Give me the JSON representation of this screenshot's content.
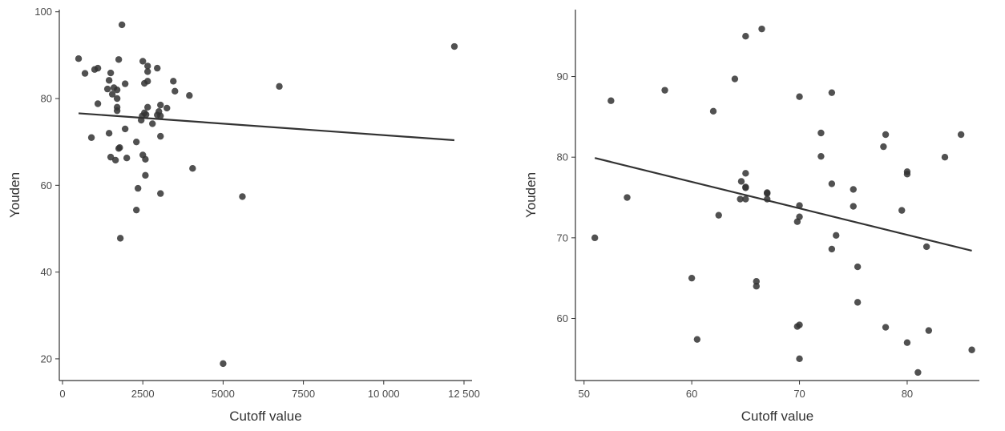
{
  "chart_data": [
    {
      "type": "scatter",
      "title": "",
      "xlabel": "Cutoff value",
      "ylabel": "Youden",
      "xlim": [
        -100,
        12750
      ],
      "ylim": [
        15,
        100.5
      ],
      "xticks": [
        0,
        2500,
        5000,
        7500,
        10000,
        12500
      ],
      "xtick_labels": [
        "0",
        "2500",
        "5000",
        "7500",
        "10 000",
        "12 500"
      ],
      "yticks": [
        20,
        40,
        60,
        80,
        100
      ],
      "ytick_labels": [
        "20",
        "40",
        "60",
        "80",
        "100"
      ],
      "grid": false,
      "points": [
        [
          500,
          89.2
        ],
        [
          700,
          85.8
        ],
        [
          900,
          71.0
        ],
        [
          1000,
          86.7
        ],
        [
          1100,
          87.0
        ],
        [
          1100,
          78.8
        ],
        [
          1400,
          82.2
        ],
        [
          1450,
          84.2
        ],
        [
          1450,
          72.0
        ],
        [
          1500,
          85.9
        ],
        [
          1500,
          66.5
        ],
        [
          1550,
          81.0
        ],
        [
          1600,
          82.5
        ],
        [
          1650,
          65.8
        ],
        [
          1700,
          82.0
        ],
        [
          1700,
          80.0
        ],
        [
          1700,
          78.0
        ],
        [
          1700,
          77.2
        ],
        [
          1750,
          89.0
        ],
        [
          1750,
          68.5
        ],
        [
          1780,
          68.7
        ],
        [
          1800,
          47.8
        ],
        [
          1850,
          97.0
        ],
        [
          1950,
          83.4
        ],
        [
          1950,
          73.0
        ],
        [
          2000,
          66.3
        ],
        [
          2300,
          70.0
        ],
        [
          2300,
          54.3
        ],
        [
          2350,
          59.3
        ],
        [
          2450,
          75.0
        ],
        [
          2480,
          76.0
        ],
        [
          2500,
          88.6
        ],
        [
          2500,
          67.0
        ],
        [
          2550,
          76.7
        ],
        [
          2550,
          83.5
        ],
        [
          2580,
          66.0
        ],
        [
          2580,
          62.3
        ],
        [
          2600,
          76.3
        ],
        [
          2650,
          78.0
        ],
        [
          2650,
          84.0
        ],
        [
          2650,
          87.5
        ],
        [
          2650,
          86.2
        ],
        [
          2800,
          74.2
        ],
        [
          2950,
          87.0
        ],
        [
          2950,
          76.2
        ],
        [
          3000,
          77.0
        ],
        [
          3050,
          78.5
        ],
        [
          3050,
          76.0
        ],
        [
          3050,
          71.3
        ],
        [
          3050,
          58.1
        ],
        [
          3250,
          77.8
        ],
        [
          3450,
          84.0
        ],
        [
          3500,
          81.7
        ],
        [
          3950,
          80.7
        ],
        [
          4050,
          63.9
        ],
        [
          5000,
          18.9
        ],
        [
          5600,
          57.4
        ],
        [
          6750,
          82.8
        ],
        [
          12200,
          92.0
        ]
      ],
      "trend_line": {
        "x": [
          500,
          12200
        ],
        "y": [
          76.6,
          70.4
        ]
      }
    },
    {
      "type": "scatter",
      "title": "",
      "xlabel": "Cutoff value",
      "ylabel": "Youden",
      "xlim": [
        49.2,
        86.7
      ],
      "ylim": [
        52.3,
        98.3
      ],
      "xticks": [
        50,
        60,
        70,
        80
      ],
      "xtick_labels": [
        "50",
        "60",
        "70",
        "80"
      ],
      "yticks": [
        60,
        70,
        80,
        90
      ],
      "ytick_labels": [
        "60",
        "70",
        "80",
        "90"
      ],
      "grid": false,
      "points": [
        [
          51.0,
          70.0
        ],
        [
          52.5,
          87.0
        ],
        [
          54.0,
          75.0
        ],
        [
          57.5,
          88.3
        ],
        [
          60.0,
          65.0
        ],
        [
          60.5,
          57.4
        ],
        [
          62.0,
          85.7
        ],
        [
          62.5,
          72.8
        ],
        [
          64.0,
          89.7
        ],
        [
          64.5,
          74.8
        ],
        [
          64.6,
          77.0
        ],
        [
          65.0,
          95.0
        ],
        [
          65.0,
          78.0
        ],
        [
          65.0,
          76.3
        ],
        [
          65.0,
          76.2
        ],
        [
          65.0,
          74.8
        ],
        [
          66.0,
          64.6
        ],
        [
          66.0,
          64.0
        ],
        [
          66.5,
          95.9
        ],
        [
          67.0,
          75.6
        ],
        [
          67.0,
          75.5
        ],
        [
          67.0,
          74.8
        ],
        [
          69.8,
          59.0
        ],
        [
          69.8,
          72.0
        ],
        [
          70.0,
          87.5
        ],
        [
          70.0,
          74.0
        ],
        [
          70.0,
          72.6
        ],
        [
          70.0,
          59.2
        ],
        [
          70.0,
          55.0
        ],
        [
          72.0,
          83.0
        ],
        [
          72.0,
          80.1
        ],
        [
          73.0,
          88.0
        ],
        [
          73.0,
          76.7
        ],
        [
          73.0,
          68.6
        ],
        [
          73.4,
          70.3
        ],
        [
          75.0,
          76.0
        ],
        [
          75.0,
          73.9
        ],
        [
          75.4,
          66.4
        ],
        [
          75.4,
          62.0
        ],
        [
          77.8,
          81.3
        ],
        [
          78.0,
          82.8
        ],
        [
          78.0,
          58.9
        ],
        [
          79.5,
          73.4
        ],
        [
          80.0,
          78.2
        ],
        [
          80.0,
          77.9
        ],
        [
          80.0,
          57.0
        ],
        [
          81.0,
          53.3
        ],
        [
          81.8,
          68.9
        ],
        [
          82.0,
          58.5
        ],
        [
          83.5,
          80.0
        ],
        [
          85.0,
          82.8
        ],
        [
          86.0,
          56.1
        ]
      ],
      "trend_line": {
        "x": [
          51,
          86
        ],
        "y": [
          79.9,
          68.4
        ]
      }
    }
  ]
}
